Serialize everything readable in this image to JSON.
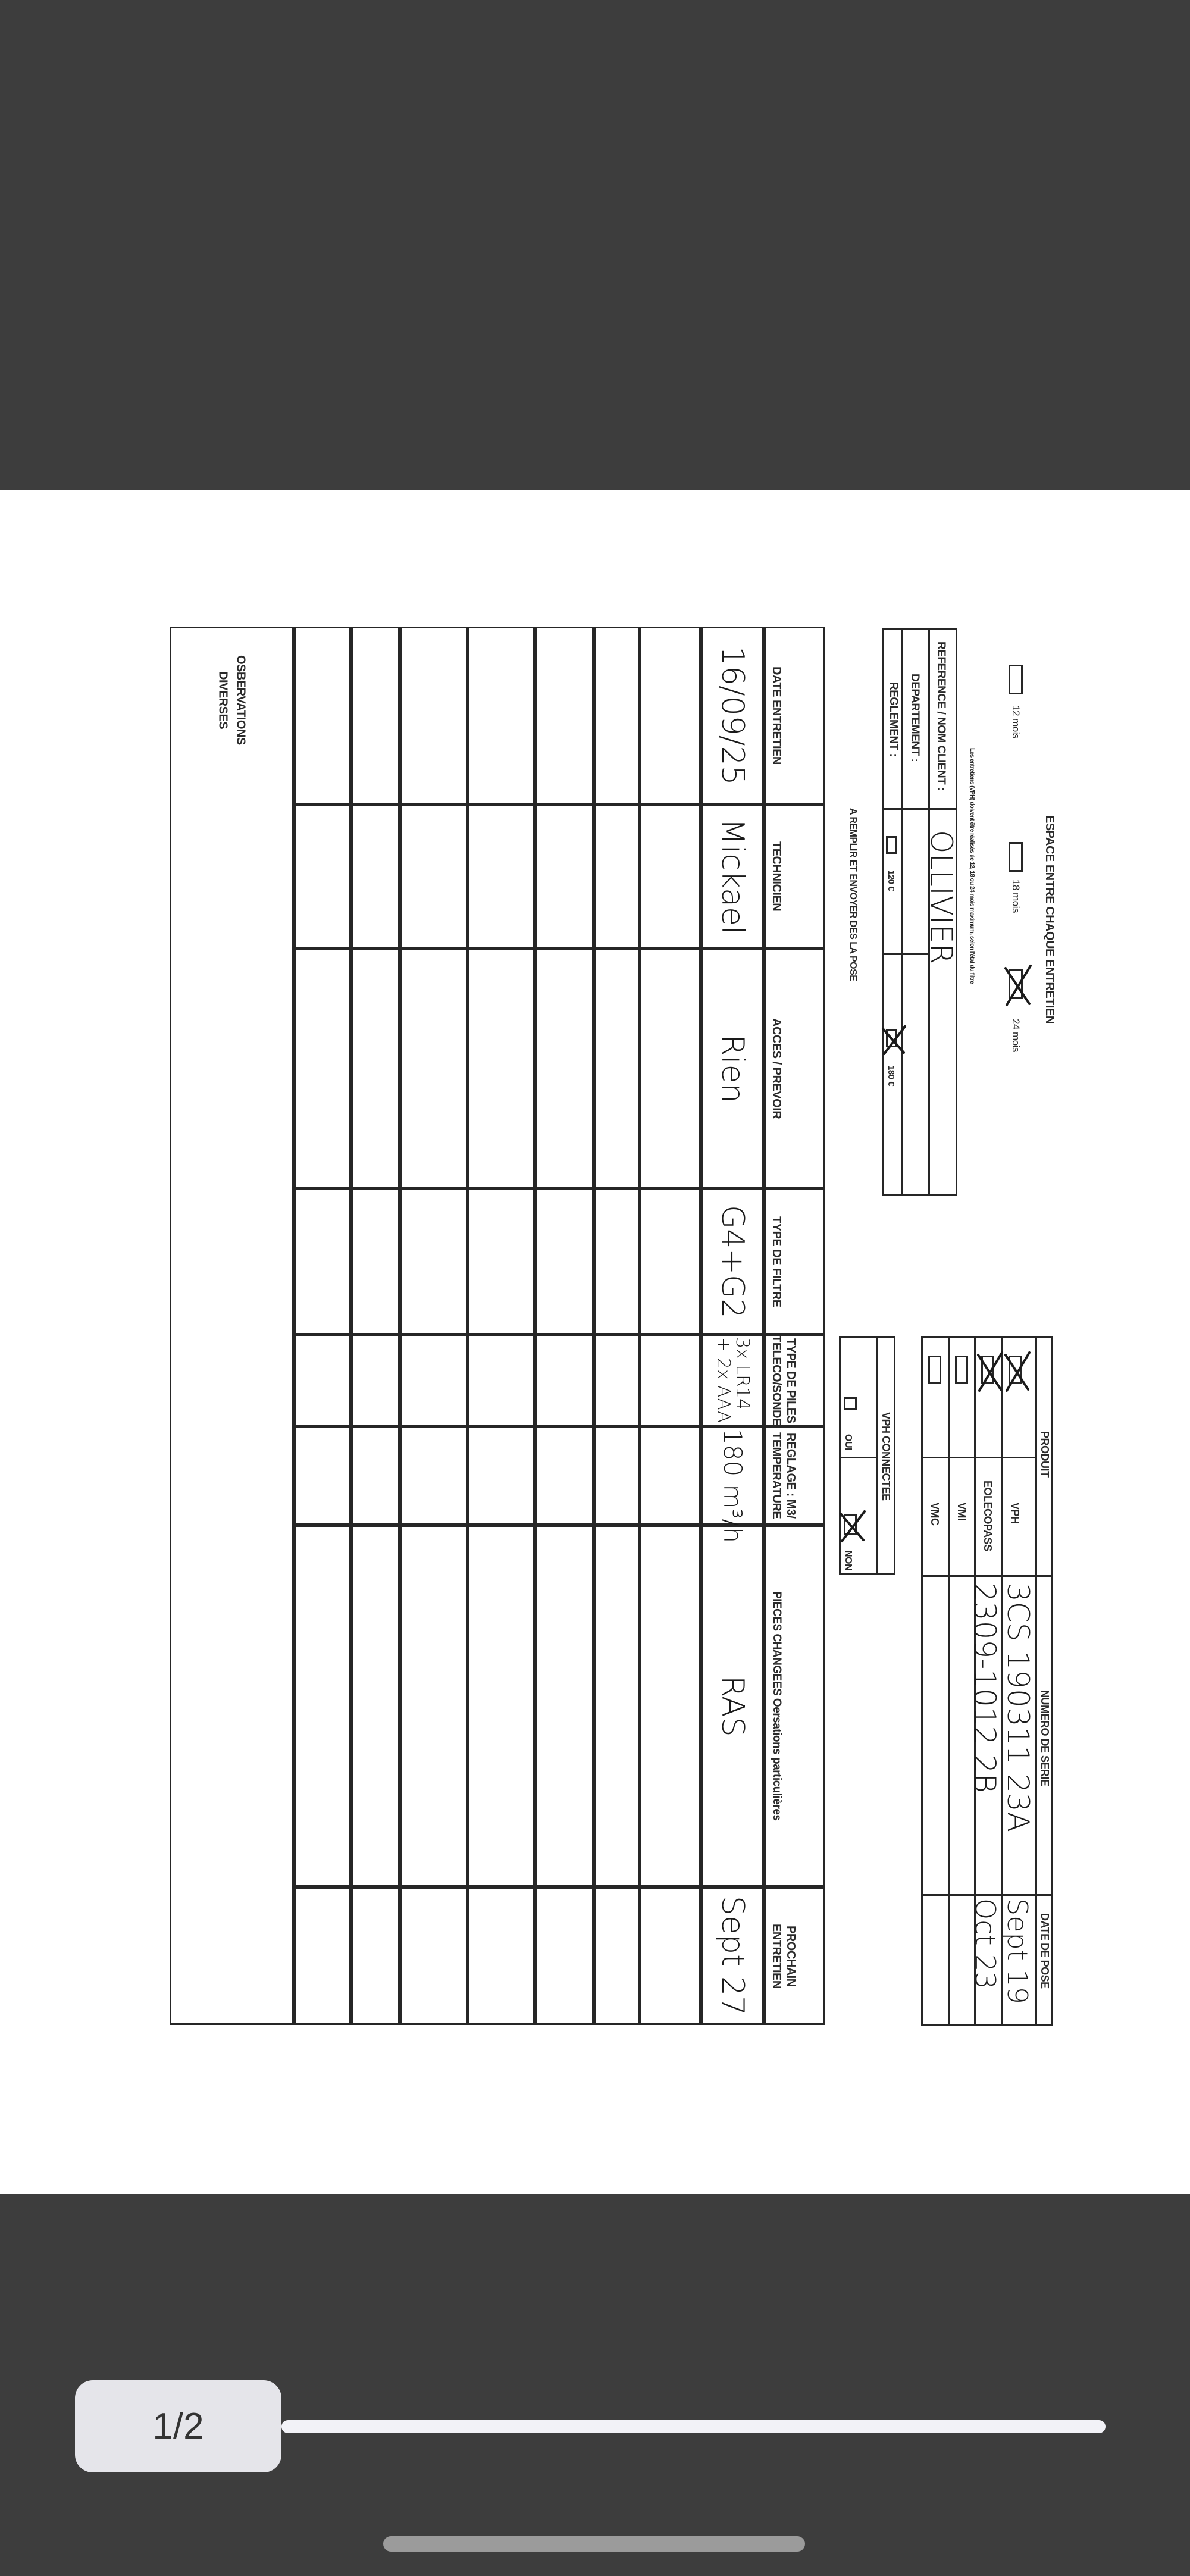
{
  "viewer": {
    "page_indicator": "1/2",
    "colors": {
      "chrome": "#3d3d3d",
      "page": "#ffffff",
      "pill": "#e5e5ea",
      "track": "#f2f2f7",
      "home_indicator": "#9b9b9b"
    }
  },
  "form": {
    "interval": {
      "title": "ESPACE ENTRE CHAQUE ENTRETIEN",
      "options": [
        {
          "label": "12 mois",
          "checked": false
        },
        {
          "label": "18 mois",
          "checked": false
        },
        {
          "label": "24 mois",
          "checked": true
        }
      ],
      "note": "Les entretiens (VPH) doivent être réalisés de 12, 18 ou 24 mois maximum, selon l'état du filtre"
    },
    "client": {
      "reference_label": "REFERENCE / NOM CLIENT :",
      "reference_value": "OLLIVIER",
      "departement_label": "DEPARTEMENT :",
      "reglement_label": "REGLEMENT :",
      "payment_options": [
        {
          "label": "120 €",
          "checked": false
        },
        {
          "label": "180 €",
          "checked": true
        }
      ]
    },
    "instruction": "A REMPLIR ET ENVOYER DES LA POSE",
    "products": {
      "headers": {
        "product": "PRODUIT",
        "serial": "NUMERO DE SERIE",
        "date": "DATE DE POSE"
      },
      "rows": [
        {
          "name": "VPH",
          "checked": true,
          "serial": "3CS 190311 23A",
          "date": "Sept 19"
        },
        {
          "name": "EOLECOPASS",
          "checked": true,
          "serial": "2309-1012 2B",
          "date": "Oct 23"
        },
        {
          "name": "VMI",
          "checked": false,
          "serial": "",
          "date": ""
        },
        {
          "name": "VMC",
          "checked": false,
          "serial": "",
          "date": ""
        }
      ]
    },
    "vph_connectee": {
      "title": "VPH CONNECTEE",
      "options": [
        {
          "label": "OUI",
          "checked": false
        },
        {
          "label": "NON",
          "checked": true
        }
      ]
    },
    "maintenance": {
      "headers": [
        [
          "DATE ENTRETIEN"
        ],
        [
          "TECHNICIEN"
        ],
        [
          "ACCES / PREVOIR"
        ],
        [
          "TYPE DE FILTRE"
        ],
        [
          "TYPE DE PILES",
          "TELECO/SONDE"
        ],
        [
          "REGLAGE : M3/",
          "TEMPERATURE"
        ],
        [
          "PIECES CHANGEES Oersations particulières"
        ],
        [
          "PROCHAIN",
          "ENTRETIEN"
        ]
      ],
      "rows": [
        [
          "16/09/25",
          "Mickael",
          "Rien",
          "G4+G2",
          "3x LR14 + 2x AAA",
          "180 m³/h",
          "RAS",
          "Sept 27"
        ],
        [
          "",
          "",
          "",
          "",
          "",
          "",
          "",
          ""
        ],
        [
          "",
          "",
          "",
          "",
          "",
          "",
          "",
          ""
        ],
        [
          "",
          "",
          "",
          "",
          "",
          "",
          "",
          ""
        ],
        [
          "",
          "",
          "",
          "",
          "",
          "",
          "",
          ""
        ],
        [
          "",
          "",
          "",
          "",
          "",
          "",
          "",
          ""
        ],
        [
          "",
          "",
          "",
          "",
          "",
          "",
          "",
          ""
        ],
        [
          "",
          "",
          "",
          "",
          "",
          "",
          "",
          ""
        ]
      ]
    },
    "observations": {
      "line1": "OSBERVATIONS",
      "line2": "DIVERSES"
    }
  }
}
